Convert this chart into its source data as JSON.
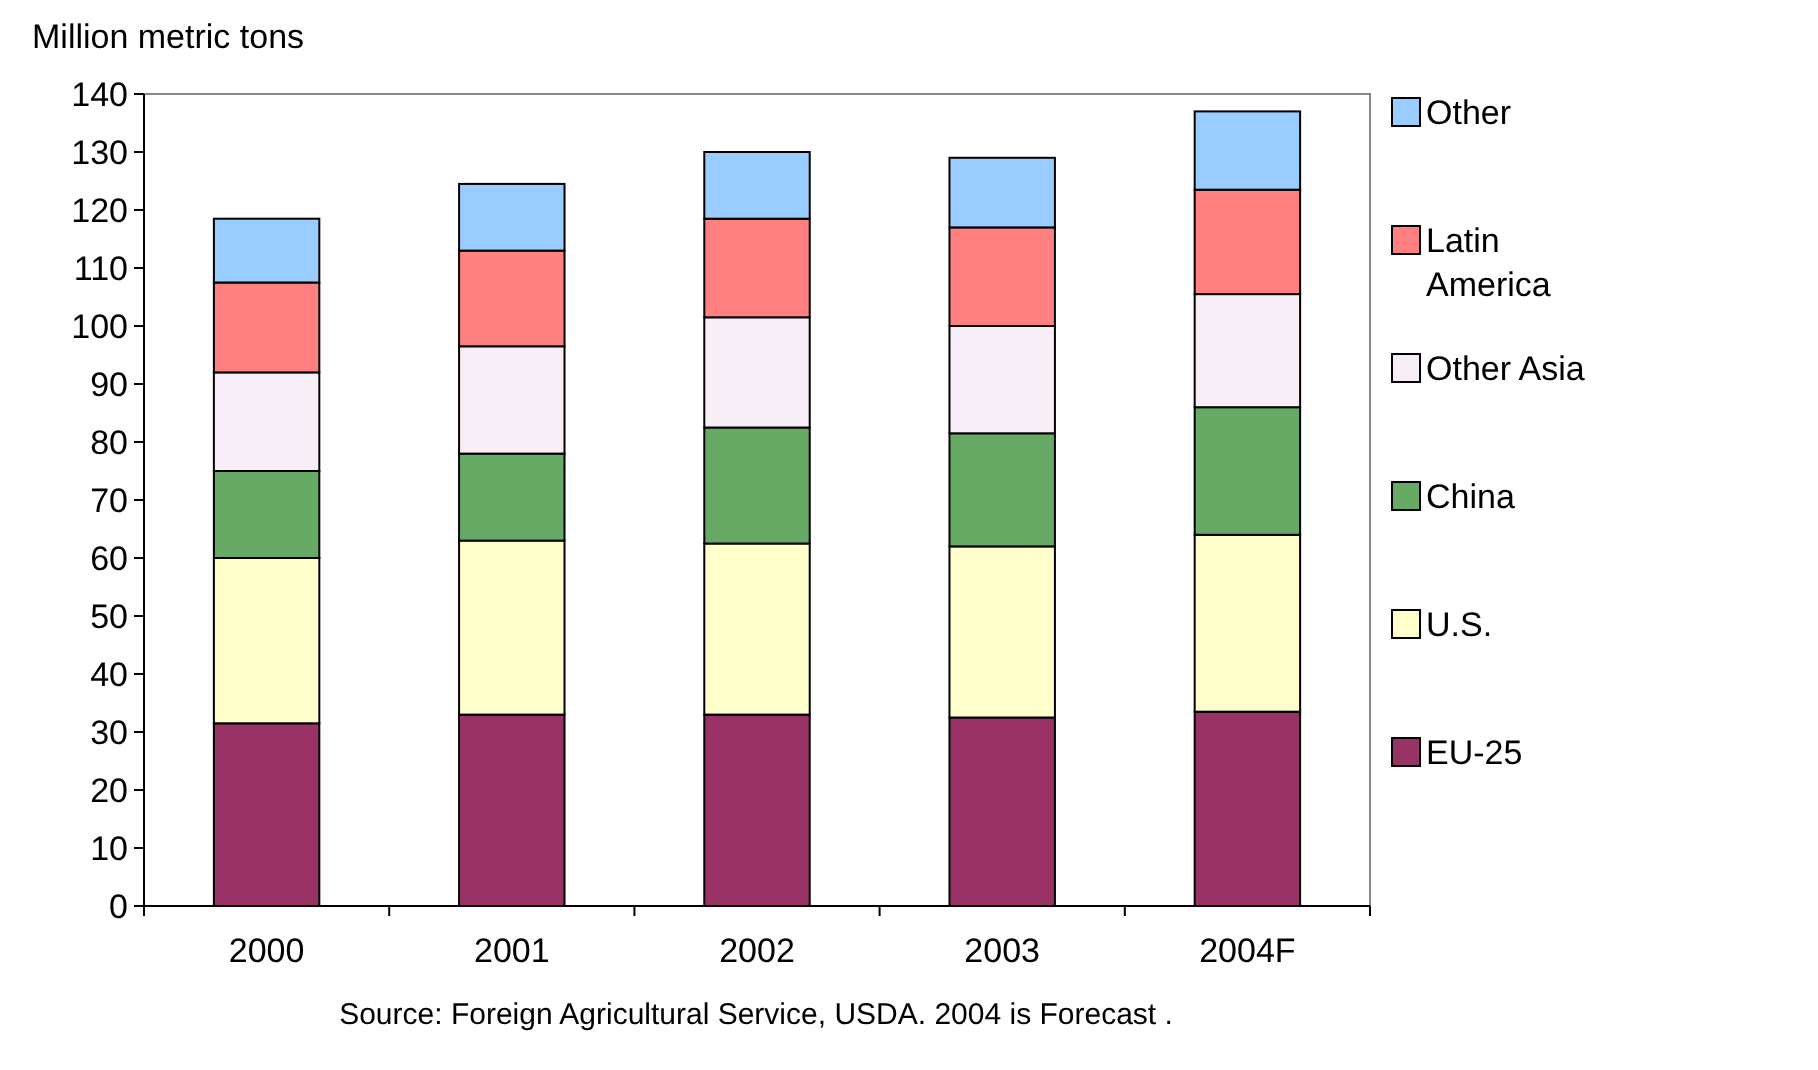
{
  "chart_data": {
    "type": "bar",
    "stacked": true,
    "ylabel": "Million metric tons",
    "categories": [
      "2000",
      "2001",
      "2002",
      "2003",
      "2004F"
    ],
    "series": [
      {
        "name": "EU-25",
        "color": "#993366",
        "values": [
          31.5,
          33,
          33,
          32.5,
          33.5
        ]
      },
      {
        "name": "U.S.",
        "color": "#ffffcc",
        "values": [
          28.5,
          30,
          29.5,
          29.5,
          30.5
        ]
      },
      {
        "name": "China",
        "color": "#66aa66",
        "values": [
          15,
          15,
          20,
          19.5,
          22
        ]
      },
      {
        "name": "Other Asia",
        "color": "#f8eef8",
        "values": [
          17,
          18.5,
          19,
          18.5,
          19.5
        ]
      },
      {
        "name": "Latin America",
        "color": "#ff8080",
        "values": [
          15.5,
          16.5,
          17,
          17,
          18
        ]
      },
      {
        "name": "Other",
        "color": "#99ccff",
        "values": [
          11,
          11.5,
          11.5,
          12,
          13.5
        ]
      }
    ],
    "ylim": [
      0,
      140
    ],
    "yticks": [
      0,
      10,
      20,
      30,
      40,
      50,
      60,
      70,
      80,
      90,
      100,
      110,
      120,
      130,
      140
    ],
    "grid": false,
    "legend": "right",
    "annotations": [
      "Source: Foreign Agricultural Service, USDA.  2004 is Forecast ."
    ]
  }
}
